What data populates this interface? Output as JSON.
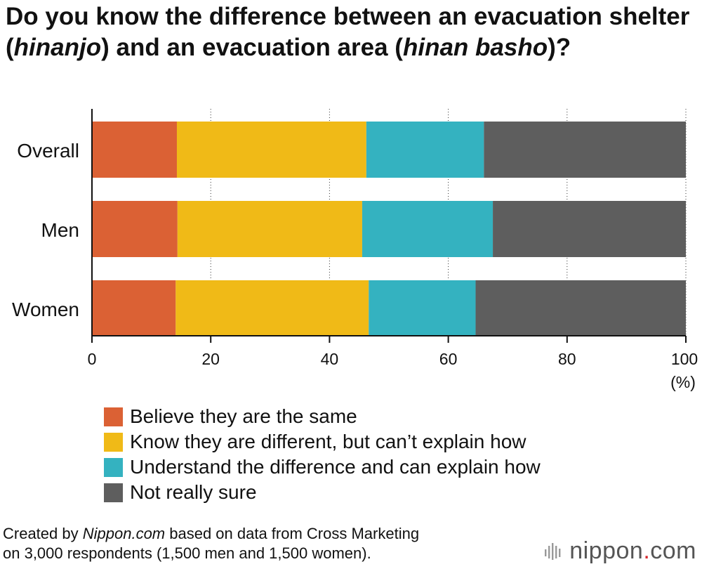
{
  "title_parts": {
    "p1": "Do you know the difference between an evacuation shelter (",
    "i1": "hinanjo",
    "p2": ") and an evacuation area (",
    "i2": "hinan basho",
    "p3": ")?"
  },
  "chart_data": {
    "type": "bar",
    "orientation": "horizontal",
    "stacked": true,
    "title": "Do you know the difference between an evacuation shelter (hinanjo) and an evacuation area (hinan basho)?",
    "categories": [
      "Overall",
      "Men",
      "Women"
    ],
    "series": [
      {
        "name": "Believe they are the same",
        "color": "#db6134",
        "values": [
          14.3,
          14.4,
          14.1
        ]
      },
      {
        "name": "Know they are different, but can’t explain how",
        "color": "#f0ba17",
        "values": [
          31.9,
          31.1,
          32.5
        ]
      },
      {
        "name": "Understand the difference and can explain how",
        "color": "#34b2c0",
        "values": [
          19.8,
          22.0,
          18.0
        ]
      },
      {
        "name": "Not really sure",
        "color": "#5e5e5e",
        "values": [
          34.0,
          32.5,
          35.4
        ]
      }
    ],
    "xlim": [
      0,
      100
    ],
    "xticks": [
      0,
      20,
      40,
      60,
      80,
      100
    ],
    "xunit": "(%)",
    "legend_position": "bottom"
  },
  "footnote": {
    "pre": "Created by ",
    "brand_italic": "Nippon.com",
    "post1": " based on data from Cross Marketing",
    "line2": "on 3,000 respondents (1,500 men and 1,500 women)."
  },
  "brand": {
    "name": "nippon",
    "dot": ".",
    "suffix": "com"
  }
}
